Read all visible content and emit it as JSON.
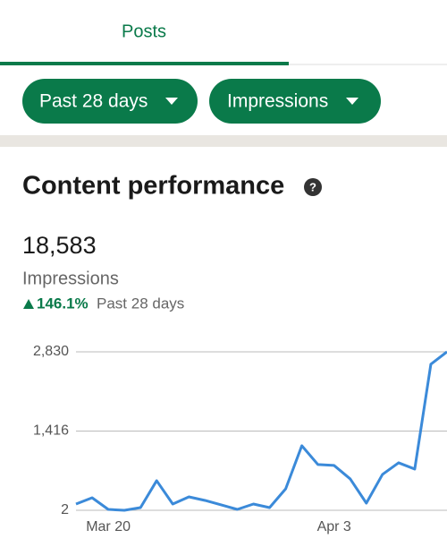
{
  "tab": {
    "label": "Posts"
  },
  "filters": [
    "Past 28 days",
    "Impressions"
  ],
  "section": {
    "title": "Content performance",
    "total": "18,583",
    "metric": "Impressions",
    "change": "146.1%",
    "period": "Past 28 days"
  },
  "chart_data": {
    "type": "line",
    "categories": [
      null,
      null,
      "Mar 20",
      null,
      null,
      null,
      null,
      null,
      null,
      null,
      null,
      null,
      null,
      null,
      null,
      null,
      "Apr 3",
      null,
      null,
      null,
      null,
      null,
      null,
      null
    ],
    "values": [
      114,
      226,
      18,
      2,
      50,
      530,
      114,
      242,
      178,
      98,
      18,
      114,
      50,
      386,
      1154,
      818,
      802,
      562,
      130,
      642,
      850,
      738,
      2610,
      2830
    ],
    "color": "#3b8ad9",
    "ylim": [
      2,
      2830
    ],
    "yticks": [
      2,
      {
        "value": 1416,
        "label": "1,416"
      },
      {
        "value": 2830,
        "label": "2,830"
      }
    ],
    "grid": true
  }
}
